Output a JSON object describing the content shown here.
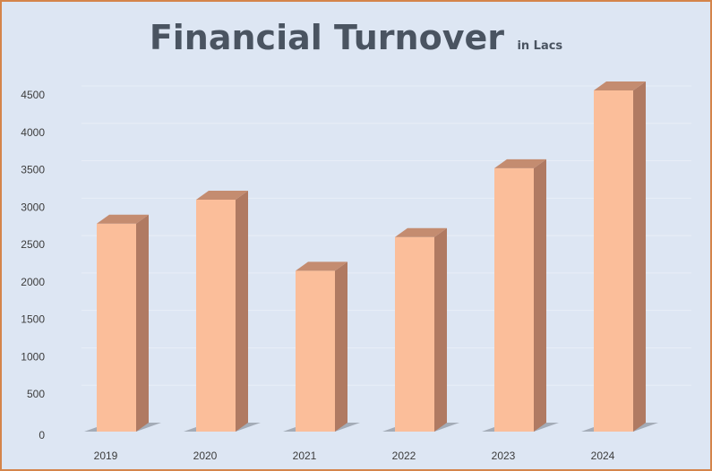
{
  "chart_data": {
    "type": "bar",
    "title": "Financial Turnover",
    "subtitle": "in Lacs",
    "categories": [
      "2019",
      "2020",
      "2021",
      "2022",
      "2023",
      "2024"
    ],
    "values": [
      2780,
      3100,
      2150,
      2600,
      3520,
      4560
    ],
    "ylim": [
      0,
      4500
    ],
    "yticks": [
      0,
      500,
      1000,
      1500,
      2000,
      2500,
      3000,
      3500,
      4000,
      4500
    ],
    "grid": true,
    "legend": "none",
    "colors": {
      "bar_front": "#fbbe9a",
      "bar_side": "#b07a62",
      "bar_top": "#c48c70",
      "background": "#dde6f3",
      "border": "#d4844a",
      "gridline": "#e8eef7",
      "title": "#4a5461"
    }
  }
}
